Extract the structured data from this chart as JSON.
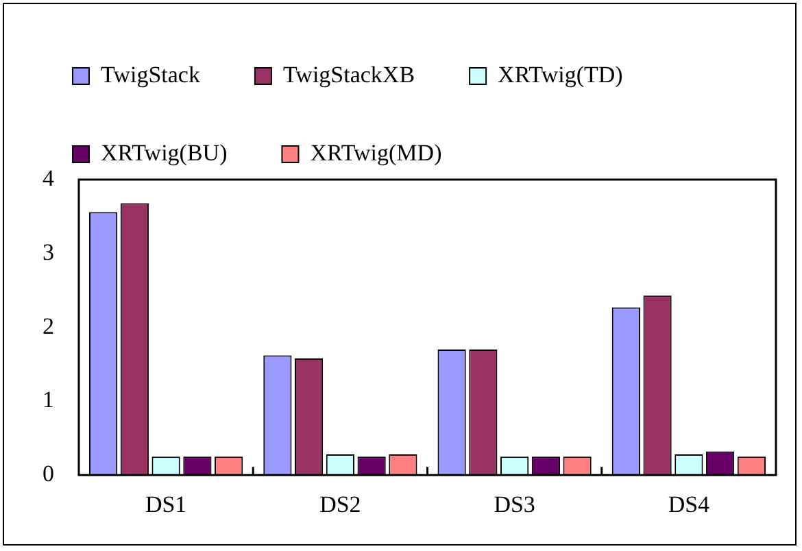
{
  "chart_data": {
    "type": "bar",
    "categories": [
      "DS1",
      "DS2",
      "DS3",
      "DS4"
    ],
    "series": [
      {
        "name": "TwigStack",
        "color": "#9999ff",
        "values": [
          3.56,
          1.62,
          1.7,
          2.27
        ]
      },
      {
        "name": "TwigStackXB",
        "color": "#993366",
        "values": [
          3.68,
          1.58,
          1.7,
          2.43
        ]
      },
      {
        "name": "XRTwig(TD)",
        "color": "#ccffff",
        "values": [
          0.25,
          0.28,
          0.25,
          0.28
        ]
      },
      {
        "name": "XRTwig(BU)",
        "color": "#660066",
        "values": [
          0.25,
          0.25,
          0.25,
          0.32
        ]
      },
      {
        "name": "XRTwig(MD)",
        "color": "#ff8080",
        "values": [
          0.25,
          0.28,
          0.25,
          0.25
        ]
      }
    ],
    "ylim": [
      0,
      4
    ],
    "yticks": [
      0,
      1,
      2,
      3,
      4
    ],
    "grid": false,
    "legend": "top"
  }
}
